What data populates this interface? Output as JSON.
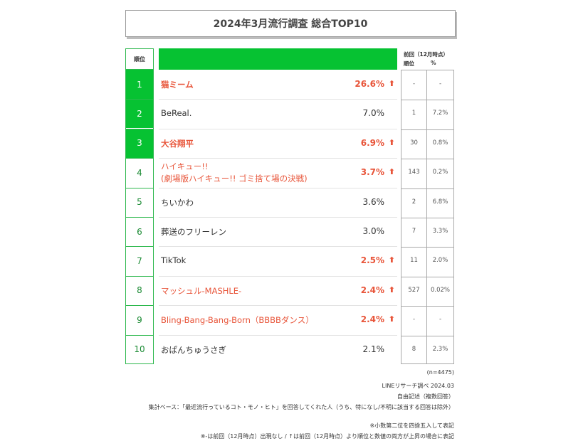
{
  "title": "2024年3月流行調査 総合TOP10",
  "header": {
    "rank_label": "順位",
    "prev_line1": "前回（12月時点）",
    "prev_rank": "順位",
    "prev_pct": "%"
  },
  "colors": {
    "accent": "#06c232",
    "highlight": "#e8553a"
  },
  "rows": [
    {
      "rank": "1",
      "name": "猫ミーム",
      "pct": "26.6%",
      "up": true,
      "prev_rank": "-",
      "prev_pct": "-"
    },
    {
      "rank": "2",
      "name": "BeReal.",
      "pct": "7.0%",
      "up": false,
      "prev_rank": "1",
      "prev_pct": "7.2%"
    },
    {
      "rank": "3",
      "name": "大谷翔平",
      "pct": "6.9%",
      "up": true,
      "prev_rank": "30",
      "prev_pct": "0.8%"
    },
    {
      "rank": "4",
      "name": "ハイキュー!!",
      "name2": "(劇場版ハイキュー!! ゴミ捨て場の決戦)",
      "pct": "3.7%",
      "up": true,
      "prev_rank": "143",
      "prev_pct": "0.2%"
    },
    {
      "rank": "5",
      "name": "ちいかわ",
      "pct": "3.6%",
      "up": false,
      "prev_rank": "2",
      "prev_pct": "6.8%"
    },
    {
      "rank": "6",
      "name": "葬送のフリーレン",
      "pct": "3.0%",
      "up": false,
      "prev_rank": "7",
      "prev_pct": "3.3%"
    },
    {
      "rank": "7",
      "name": "TikTok",
      "pct": "2.5%",
      "up": true,
      "prev_rank": "11",
      "prev_pct": "2.0%"
    },
    {
      "rank": "8",
      "name": "マッシュル-MASHLE-",
      "pct": "2.4%",
      "up": true,
      "prev_rank": "527",
      "prev_pct": "0.02%"
    },
    {
      "rank": "9",
      "name": "Bling-Bang-Bang-Born（BBBBダンス）",
      "pct": "2.4%",
      "up": true,
      "prev_rank": "-",
      "prev_pct": "-"
    },
    {
      "rank": "10",
      "name": "おぱんちゅうさぎ",
      "pct": "2.1%",
      "up": false,
      "prev_rank": "8",
      "prev_pct": "2.3%"
    }
  ],
  "arrow_glyph": "⬆",
  "notes": {
    "n": "(n=4475)",
    "source": "LINEリサーチ調べ 2024.03",
    "method": "自由記述（複数回答）",
    "base": "集計ベース：「最近流行っているコト・モノ・ヒト」を回答してくれた人（うち、特になし/不明に該当する回答は除外）",
    "rounding": "※小数第二位を四捨五入して表記",
    "legend": "※-は前回（12月時点）出現なし / ↑は前回（12月時点）より順位と数値の両方が上昇の場合に表記"
  }
}
